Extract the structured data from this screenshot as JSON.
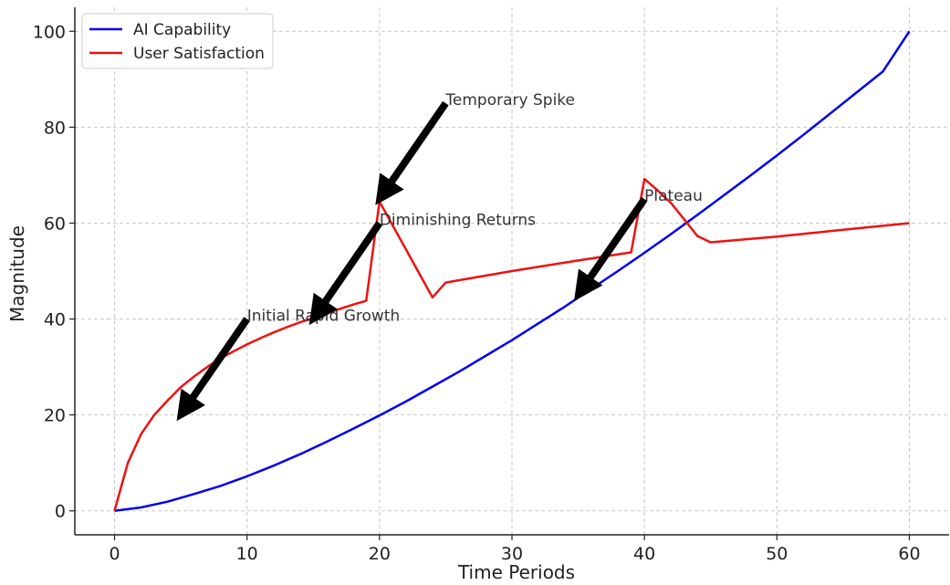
{
  "chart_data": {
    "type": "line",
    "xlabel": "Time Periods",
    "ylabel": "Magnitude",
    "xlim": [
      -3,
      63
    ],
    "ylim": [
      -5,
      105
    ],
    "xticks": [
      0,
      10,
      20,
      30,
      40,
      50,
      60
    ],
    "yticks": [
      0,
      20,
      40,
      60,
      80,
      100
    ],
    "grid": true,
    "legend_position": "top-left",
    "series": [
      {
        "name": "AI Capability",
        "color": "#0000ee",
        "x": [
          0,
          2,
          4,
          6,
          8,
          10,
          12,
          14,
          16,
          18,
          20,
          22,
          24,
          26,
          28,
          30,
          32,
          34,
          36,
          38,
          40,
          42,
          44,
          46,
          48,
          50,
          52,
          54,
          56,
          58,
          60
        ],
        "y": [
          0,
          0.7,
          1.9,
          3.5,
          5.2,
          7.2,
          9.4,
          11.8,
          14.4,
          17.1,
          19.9,
          22.8,
          25.9,
          29.0,
          32.3,
          35.6,
          39.1,
          42.6,
          46.3,
          50.0,
          53.8,
          57.7,
          61.7,
          65.8,
          69.9,
          74.1,
          78.4,
          82.8,
          87.2,
          91.6,
          100
        ]
      },
      {
        "name": "User Satisfaction",
        "color": "#ee1111",
        "x": [
          0,
          1,
          2,
          3,
          4,
          5,
          6,
          7,
          8,
          9,
          10,
          11,
          12,
          13,
          14,
          15,
          16,
          17,
          18,
          19,
          20,
          24,
          25,
          30,
          35,
          39,
          40,
          41,
          42,
          43,
          44,
          45,
          50,
          55,
          60
        ],
        "y": [
          0,
          10,
          16,
          20,
          23,
          25.8,
          28,
          30,
          31.8,
          33.3,
          34.7,
          36,
          37.2,
          38.3,
          39.3,
          40.2,
          41.2,
          42.1,
          43,
          43.8,
          64.5,
          44.5,
          47.6,
          50.0,
          52.2,
          53.9,
          69.2,
          66.8,
          64.2,
          60.8,
          57.3,
          56,
          57.2,
          58.6,
          60
        ]
      }
    ],
    "annotations": [
      {
        "text": "Initial Rapid Growth",
        "point": [
          5,
          20
        ],
        "text_pos": [
          10,
          40
        ]
      },
      {
        "text": "Diminishing Returns",
        "point": [
          15,
          40
        ],
        "text_pos": [
          20,
          60
        ]
      },
      {
        "text": "Temporary Spike",
        "point": [
          20,
          65
        ],
        "text_pos": [
          25,
          85
        ]
      },
      {
        "text": "Plateau",
        "point": [
          35,
          45
        ],
        "text_pos": [
          40,
          65
        ]
      }
    ]
  }
}
